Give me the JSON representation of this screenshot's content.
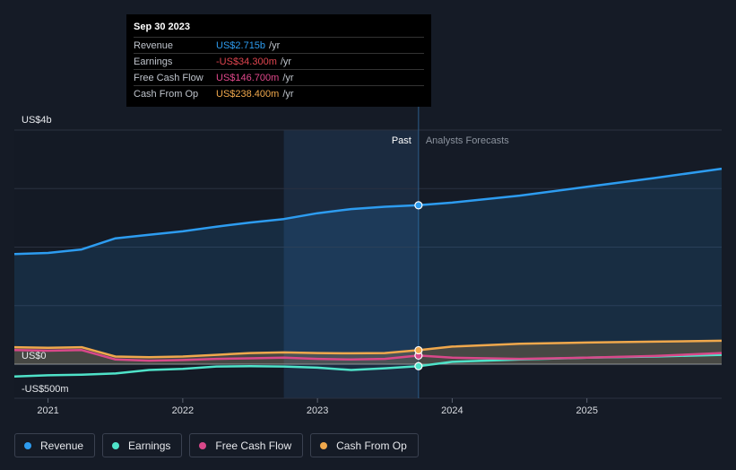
{
  "tooltip": {
    "date": "Sep 30 2023",
    "rows": [
      {
        "label": "Revenue",
        "value": "US$2.715b",
        "unit": "/yr",
        "color": "#2d9cf0"
      },
      {
        "label": "Earnings",
        "value": "-US$34.300m",
        "unit": "/yr",
        "color": "#e0454f"
      },
      {
        "label": "Free Cash Flow",
        "value": "US$146.700m",
        "unit": "/yr",
        "color": "#e0488b"
      },
      {
        "label": "Cash From Op",
        "value": "US$238.400m",
        "unit": "/yr",
        "color": "#f0a84c"
      }
    ]
  },
  "legend": [
    {
      "label": "Revenue",
      "color": "#2d9cf0"
    },
    {
      "label": "Earnings",
      "color": "#4fe3c9"
    },
    {
      "label": "Free Cash Flow",
      "color": "#d9488a"
    },
    {
      "label": "Cash From Op",
      "color": "#f0a84c"
    }
  ],
  "chart_data": {
    "type": "line",
    "y_axis_labels": [
      "US$4b",
      "US$0",
      "-US$500m"
    ],
    "ylim": [
      -500,
      4000
    ],
    "xlim": [
      2020.75,
      2026.0
    ],
    "x_ticks": [
      {
        "value": 2021,
        "label": "2021"
      },
      {
        "value": 2022,
        "label": "2022"
      },
      {
        "value": 2023,
        "label": "2023"
      },
      {
        "value": 2024,
        "label": "2024"
      },
      {
        "value": 2025,
        "label": "2025"
      }
    ],
    "past_label": "Past",
    "forecast_label": "Analysts Forecasts",
    "divider_x": 2023.75,
    "highlight_start_x": 2022.75,
    "series": [
      {
        "name": "Revenue",
        "color": "#2d9cf0",
        "fill": true,
        "points": [
          [
            2020.75,
            1880
          ],
          [
            2021.0,
            1900
          ],
          [
            2021.25,
            1960
          ],
          [
            2021.5,
            2150
          ],
          [
            2021.75,
            2210
          ],
          [
            2022.0,
            2270
          ],
          [
            2022.25,
            2350
          ],
          [
            2022.5,
            2420
          ],
          [
            2022.75,
            2480
          ],
          [
            2023.0,
            2580
          ],
          [
            2023.25,
            2650
          ],
          [
            2023.5,
            2690
          ],
          [
            2023.75,
            2715
          ],
          [
            2024.0,
            2760
          ],
          [
            2024.5,
            2880
          ],
          [
            2025.0,
            3030
          ],
          [
            2025.5,
            3180
          ],
          [
            2026.0,
            3340
          ]
        ],
        "marker_x": 2023.75
      },
      {
        "name": "Earnings",
        "color": "#4fe3c9",
        "fill": false,
        "points": [
          [
            2020.75,
            -210
          ],
          [
            2021.0,
            -190
          ],
          [
            2021.25,
            -180
          ],
          [
            2021.5,
            -160
          ],
          [
            2021.75,
            -100
          ],
          [
            2022.0,
            -80
          ],
          [
            2022.25,
            -40
          ],
          [
            2022.5,
            -35
          ],
          [
            2022.75,
            -40
          ],
          [
            2023.0,
            -60
          ],
          [
            2023.25,
            -100
          ],
          [
            2023.5,
            -70
          ],
          [
            2023.75,
            -34.3
          ],
          [
            2024.0,
            40
          ],
          [
            2024.5,
            80
          ],
          [
            2025.0,
            110
          ],
          [
            2025.5,
            130
          ],
          [
            2026.0,
            160
          ]
        ],
        "marker_x": 2023.75
      },
      {
        "name": "Free Cash Flow",
        "color": "#d9488a",
        "fill": false,
        "points": [
          [
            2020.75,
            240
          ],
          [
            2021.0,
            230
          ],
          [
            2021.25,
            240
          ],
          [
            2021.5,
            80
          ],
          [
            2021.75,
            60
          ],
          [
            2022.0,
            70
          ],
          [
            2022.25,
            90
          ],
          [
            2022.5,
            100
          ],
          [
            2022.75,
            110
          ],
          [
            2023.0,
            90
          ],
          [
            2023.25,
            80
          ],
          [
            2023.5,
            90
          ],
          [
            2023.75,
            146.7
          ],
          [
            2024.0,
            110
          ],
          [
            2024.5,
            90
          ],
          [
            2025.0,
            110
          ],
          [
            2025.5,
            140
          ],
          [
            2026.0,
            190
          ]
        ],
        "marker_x": 2023.75
      },
      {
        "name": "Cash From Op",
        "color": "#f0a84c",
        "fill": true,
        "points": [
          [
            2020.75,
            290
          ],
          [
            2021.0,
            280
          ],
          [
            2021.25,
            290
          ],
          [
            2021.5,
            130
          ],
          [
            2021.75,
            120
          ],
          [
            2022.0,
            130
          ],
          [
            2022.25,
            160
          ],
          [
            2022.5,
            190
          ],
          [
            2022.75,
            200
          ],
          [
            2023.0,
            190
          ],
          [
            2023.25,
            185
          ],
          [
            2023.5,
            190
          ],
          [
            2023.75,
            238.4
          ],
          [
            2024.0,
            300
          ],
          [
            2024.5,
            350
          ],
          [
            2025.0,
            370
          ],
          [
            2025.5,
            385
          ],
          [
            2026.0,
            400
          ]
        ],
        "marker_x": 2023.75
      }
    ]
  }
}
